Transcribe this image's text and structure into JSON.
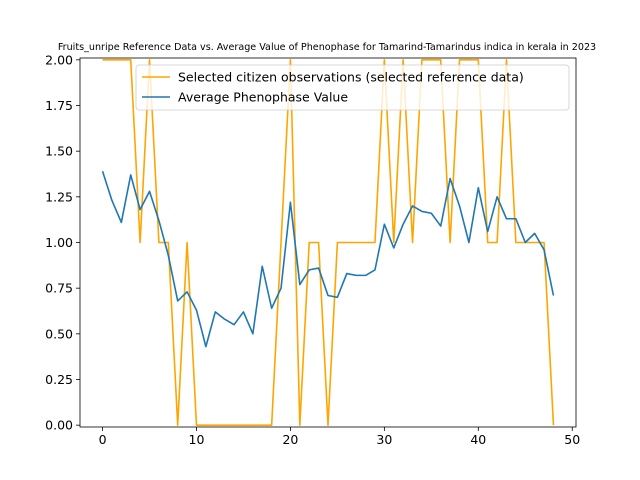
{
  "chart_data": {
    "type": "line",
    "title": "Fruits_unripe Reference Data vs. Average Value of Phenophase for Tamarind-Tamarindus indica in kerala in 2023",
    "xlabel": "",
    "ylabel": "",
    "xlim": [
      -2.4,
      50.4
    ],
    "ylim": [
      -0.01,
      2.01
    ],
    "xticks": [
      0,
      10,
      20,
      30,
      40,
      50
    ],
    "yticks": [
      0.0,
      0.25,
      0.5,
      0.75,
      1.0,
      1.25,
      1.5,
      1.75,
      2.0
    ],
    "xtick_labels": [
      "0",
      "10",
      "20",
      "30",
      "40",
      "50"
    ],
    "ytick_labels": [
      "0.00",
      "0.25",
      "0.50",
      "0.75",
      "1.00",
      "1.25",
      "1.50",
      "1.75",
      "2.00"
    ],
    "grid": false,
    "legend_position": "top-right",
    "x": [
      0,
      1,
      2,
      3,
      4,
      5,
      6,
      7,
      8,
      9,
      10,
      11,
      12,
      13,
      14,
      15,
      16,
      17,
      18,
      19,
      20,
      21,
      22,
      23,
      24,
      25,
      26,
      27,
      28,
      29,
      30,
      31,
      32,
      33,
      34,
      35,
      36,
      37,
      38,
      39,
      40,
      41,
      42,
      43,
      44,
      45,
      46,
      47,
      48
    ],
    "series": [
      {
        "name": "Selected citizen observations (selected reference data)",
        "color": "#ffa500",
        "values": [
          2,
          2,
          2,
          2,
          1,
          2,
          1,
          1,
          0,
          1,
          0,
          0,
          0,
          0,
          0,
          0,
          0,
          0,
          0,
          1,
          2,
          0,
          1,
          1,
          0,
          1,
          1,
          1,
          1,
          1,
          2,
          1,
          2,
          1,
          2,
          2,
          2,
          1,
          2,
          2,
          2,
          1,
          1,
          2,
          1,
          1,
          1,
          1,
          0
        ]
      },
      {
        "name": "Average Phenophase Value",
        "color": "#1f77b4",
        "values": [
          1.39,
          1.23,
          1.11,
          1.37,
          1.18,
          1.28,
          1.12,
          0.93,
          0.68,
          0.73,
          0.63,
          0.43,
          0.62,
          0.58,
          0.55,
          0.62,
          0.5,
          0.87,
          0.64,
          0.75,
          1.22,
          0.77,
          0.85,
          0.86,
          0.71,
          0.7,
          0.83,
          0.82,
          0.82,
          0.85,
          1.1,
          0.97,
          1.1,
          1.2,
          1.17,
          1.16,
          1.09,
          1.35,
          1.2,
          1.0,
          1.3,
          1.06,
          1.25,
          1.13,
          1.13,
          1.0,
          1.05,
          0.96,
          0.71
        ]
      }
    ]
  }
}
